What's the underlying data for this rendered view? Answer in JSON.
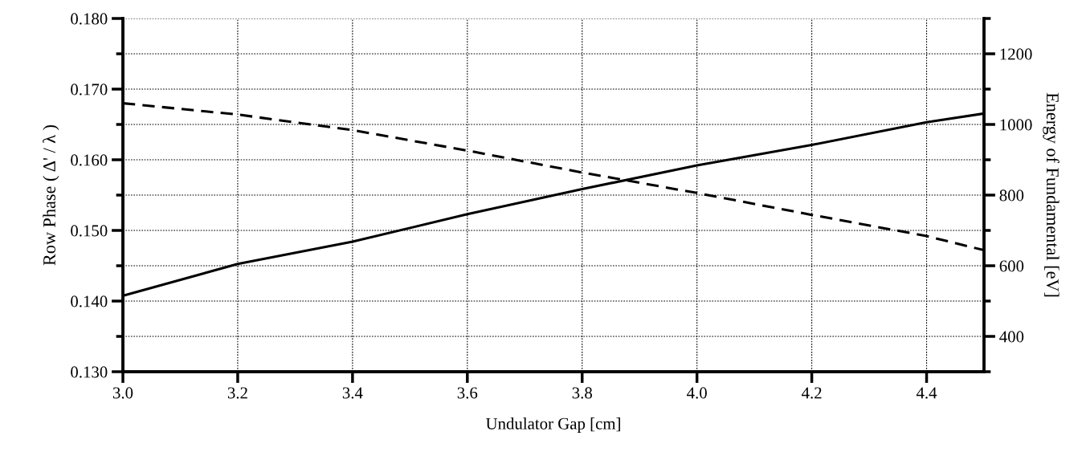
{
  "chart_data": {
    "type": "line",
    "xlabel": "Undulator Gap [cm]",
    "ylabel": "Row Phase ( Δ' / λ )",
    "y2label": "Energy of Fundamental [eV]",
    "x": [
      3.0,
      3.2,
      3.4,
      3.6,
      3.8,
      4.0,
      4.2,
      4.4,
      4.5
    ],
    "series": [
      {
        "color": "#000000",
        "line_style": "dashed",
        "values": [
          0.168,
          0.1664,
          0.1642,
          0.1613,
          0.1582,
          0.1553,
          0.1522,
          0.1492,
          0.1472
        ]
      },
      {
        "color": "#000000",
        "line_style": "solid",
        "axis": "y2",
        "values": [
          515,
          605,
          668,
          746,
          817,
          884,
          942,
          1006,
          1031
        ]
      }
    ],
    "xlim": [
      3.0,
      4.5
    ],
    "xticks": [
      {
        "value": 3.0,
        "label": "3.0"
      },
      3.2,
      3.4,
      3.6,
      3.8,
      {
        "value": 4.0,
        "label": "4.0"
      },
      4.2,
      4.4
    ],
    "ylim": [
      0.13,
      0.18
    ],
    "yticks": [
      {
        "value": 0.13,
        "label": "0.130"
      },
      {
        "value": 0.135,
        "label": null
      },
      {
        "value": 0.14,
        "label": "0.140"
      },
      {
        "value": 0.145,
        "label": null
      },
      {
        "value": 0.15,
        "label": "0.150"
      },
      {
        "value": 0.155,
        "label": null
      },
      {
        "value": 0.16,
        "label": "0.160"
      },
      {
        "value": 0.165,
        "label": null
      },
      {
        "value": 0.17,
        "label": "0.170"
      },
      {
        "value": 0.175,
        "label": null
      },
      {
        "value": 0.18,
        "label": "0.180"
      }
    ],
    "y2lim": [
      300,
      1300
    ],
    "y2ticks": [
      {
        "value": 300,
        "label": null
      },
      400,
      {
        "value": 500,
        "label": null
      },
      600,
      {
        "value": 700,
        "label": null
      },
      800,
      {
        "value": 900,
        "label": null
      },
      1000,
      {
        "value": 1100,
        "label": null
      },
      1200,
      {
        "value": 1300,
        "label": null
      }
    ],
    "grid": true,
    "legend": false
  }
}
